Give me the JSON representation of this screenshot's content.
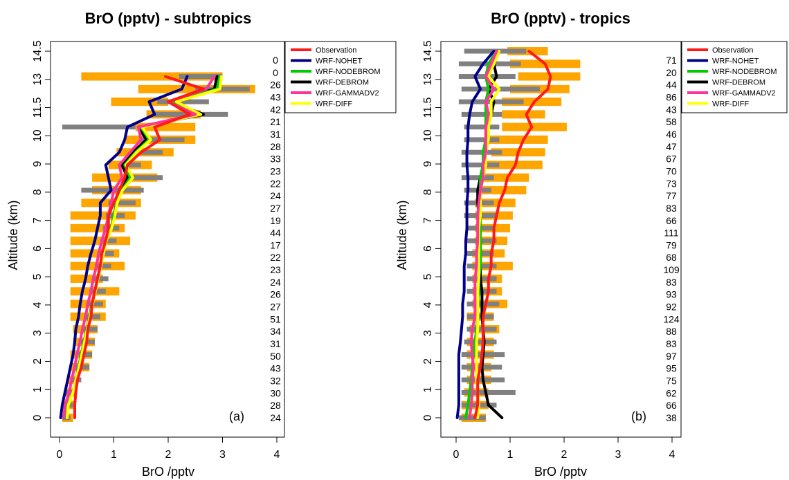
{
  "chart_data": [
    {
      "type": "line",
      "title": "BrO (pptv) -  subtropics",
      "panel_label": "(a)",
      "xlabel": "BrO /pptv",
      "ylabel": "Altitude (km)",
      "xlim": [
        0,
        4
      ],
      "ylim": [
        0,
        14.5
      ],
      "xticks": [
        "0",
        "1",
        "2",
        "3",
        "4"
      ],
      "yticks": [
        "0",
        "1",
        "2",
        "3",
        "4",
        "5",
        "6",
        "7",
        "8",
        "9",
        "10",
        "11.5",
        "13",
        "14.5"
      ],
      "grid": false,
      "legend": "top-right outside",
      "altitudes": [
        0,
        0.5,
        1,
        1.5,
        2,
        2.5,
        3,
        3.5,
        4,
        4.5,
        5,
        5.5,
        6,
        6.5,
        7,
        7.5,
        8,
        8.5,
        9,
        9.5,
        10,
        10.5,
        11,
        11.5,
        12,
        12.5,
        13,
        13.5
      ],
      "counts": [
        "24",
        "28",
        "30",
        "32",
        "43",
        "50",
        "31",
        "34",
        "51",
        "27",
        "26",
        "24",
        "23",
        "22",
        "17",
        "44",
        "19",
        "27",
        "24",
        "22",
        "23",
        "33",
        "28",
        "31",
        "21",
        "42",
        "43",
        "26",
        "0",
        "0"
      ],
      "obs_ranges": [
        [
          0.05,
          0.25
        ],
        [
          0.05,
          0.3
        ],
        [
          0.1,
          0.3
        ],
        [
          0.15,
          0.35
        ],
        [
          0.2,
          0.55
        ],
        [
          0.2,
          0.6
        ],
        [
          0.25,
          0.65
        ],
        [
          0.25,
          0.7
        ],
        [
          0.2,
          0.85
        ],
        [
          0.2,
          0.85
        ],
        [
          0.2,
          1.1
        ],
        [
          0.2,
          0.8
        ],
        [
          0.2,
          1.2
        ],
        [
          0.2,
          1.1
        ],
        [
          0.2,
          1.3
        ],
        [
          0.2,
          1.2
        ],
        [
          0.2,
          1.4
        ],
        [
          0.4,
          1.5
        ],
        [
          0.6,
          1.5
        ],
        [
          0.6,
          1.8
        ],
        [
          0.9,
          1.7
        ],
        [
          1.05,
          2.1
        ],
        [
          1.2,
          2.5
        ],
        [
          1.4,
          2.5
        ],
        [
          1.6,
          2.6
        ],
        [
          0.95,
          2.0
        ],
        [
          1.45,
          3.6
        ],
        [
          0.4,
          3.0
        ]
      ],
      "model_ranges": [
        [
          0.05,
          0.2
        ],
        [
          0.05,
          0.25
        ],
        [
          0.1,
          0.3
        ],
        [
          0.2,
          0.4
        ],
        [
          0.3,
          0.55
        ],
        [
          0.35,
          0.6
        ],
        [
          0.35,
          0.65
        ],
        [
          0.4,
          0.7
        ],
        [
          0.45,
          0.75
        ],
        [
          0.5,
          0.8
        ],
        [
          0.55,
          0.85
        ],
        [
          0.6,
          0.9
        ],
        [
          0.65,
          0.95
        ],
        [
          0.7,
          1.0
        ],
        [
          0.75,
          1.05
        ],
        [
          0.8,
          1.1
        ],
        [
          0.85,
          1.2
        ],
        [
          0.9,
          1.4
        ],
        [
          0.4,
          1.55
        ],
        [
          1.2,
          1.9
        ],
        [
          1.1,
          1.5
        ],
        [
          1.3,
          1.9
        ],
        [
          1.5,
          2.3
        ],
        [
          0.05,
          1.4
        ],
        [
          1.75,
          3.1
        ],
        [
          1.8,
          2.75
        ],
        [
          2.5,
          3.5
        ],
        [
          2.2,
          3.0
        ]
      ],
      "series": [
        {
          "name": "Observation",
          "color": "#ff1a1a",
          "values": [
            0.28,
            0.28,
            0.3,
            0.33,
            0.4,
            0.45,
            0.5,
            0.52,
            0.58,
            0.6,
            0.65,
            0.7,
            0.75,
            0.78,
            0.85,
            0.9,
            0.9,
            1.0,
            1.1,
            1.2,
            1.25,
            1.5,
            1.85,
            1.75,
            2.4,
            2.0,
            2.65,
            1.95
          ]
        },
        {
          "name": "WRF-NOHET",
          "color": "#00008b",
          "values": [
            0.02,
            0.05,
            0.1,
            0.15,
            0.2,
            0.25,
            0.28,
            0.3,
            0.35,
            0.38,
            0.42,
            0.48,
            0.52,
            0.58,
            0.65,
            0.7,
            0.75,
            0.75,
            0.95,
            0.9,
            0.85,
            1.1,
            1.2,
            1.25,
            1.75,
            1.65,
            2.25,
            2.35
          ]
        },
        {
          "name": "WRF-NODEBROM",
          "color": "#00cc00",
          "values": [
            0.12,
            0.15,
            0.25,
            0.3,
            0.35,
            0.4,
            0.45,
            0.5,
            0.55,
            0.6,
            0.65,
            0.7,
            0.75,
            0.8,
            0.85,
            0.95,
            1.0,
            1.05,
            1.15,
            1.3,
            1.2,
            1.4,
            1.65,
            1.5,
            2.6,
            2.1,
            2.9,
            2.95
          ]
        },
        {
          "name": "WRF-DEBROM",
          "color": "#000000",
          "values": [
            0.12,
            0.15,
            0.25,
            0.3,
            0.35,
            0.4,
            0.45,
            0.5,
            0.55,
            0.6,
            0.65,
            0.7,
            0.75,
            0.8,
            0.85,
            0.95,
            1.0,
            1.05,
            1.1,
            1.25,
            1.15,
            1.35,
            1.6,
            1.45,
            2.65,
            2.05,
            2.85,
            2.9
          ]
        },
        {
          "name": "WRF-GAMMADV2",
          "color": "#ff3399",
          "values": [
            0.08,
            0.1,
            0.18,
            0.22,
            0.28,
            0.32,
            0.38,
            0.42,
            0.48,
            0.52,
            0.58,
            0.62,
            0.68,
            0.72,
            0.78,
            0.85,
            0.9,
            0.95,
            1.0,
            1.15,
            1.1,
            1.3,
            1.5,
            1.45,
            2.5,
            2.0,
            2.7,
            2.85
          ]
        },
        {
          "name": "WRF-DIFF",
          "color": "#ffff00",
          "values": [
            0.14,
            0.16,
            0.25,
            0.3,
            0.36,
            0.41,
            0.46,
            0.51,
            0.56,
            0.61,
            0.66,
            0.71,
            0.76,
            0.81,
            0.86,
            0.96,
            1.02,
            1.06,
            1.16,
            1.35,
            1.22,
            1.42,
            1.68,
            1.52,
            2.6,
            2.15,
            2.95,
            2.98
          ]
        }
      ]
    },
    {
      "type": "line",
      "title": "BrO (pptv) - tropics",
      "panel_label": "(b)",
      "xlabel": "BrO /pptv",
      "ylabel": "Altitude (km)",
      "xlim": [
        0,
        4
      ],
      "ylim": [
        0,
        14.5
      ],
      "xticks": [
        "0",
        "1",
        "2",
        "3",
        "4"
      ],
      "yticks": [
        "0",
        "1",
        "2",
        "3",
        "4",
        "5",
        "6",
        "7",
        "8",
        "9",
        "10",
        "11.5",
        "13",
        "14.5"
      ],
      "grid": false,
      "legend": "top-right outside",
      "altitudes": [
        0,
        0.5,
        1,
        1.5,
        2,
        2.5,
        3,
        3.5,
        4,
        4.5,
        5,
        5.5,
        6,
        6.5,
        7,
        7.5,
        8,
        8.5,
        9,
        9.5,
        10,
        10.5,
        11,
        11.5,
        12,
        12.5,
        13,
        13.5,
        14,
        14.5
      ],
      "counts": [
        "38",
        "66",
        "62",
        "75",
        "95",
        "97",
        "83",
        "88",
        "124",
        "92",
        "93",
        "83",
        "109",
        "68",
        "79",
        "111",
        "66",
        "83",
        "77",
        "73",
        "70",
        "67",
        "47",
        "46",
        "58",
        "43",
        "86",
        "44",
        "20",
        "71"
      ],
      "obs_ranges": [
        [
          0.1,
          0.55
        ],
        [
          0.1,
          0.6
        ],
        [
          0.15,
          0.6
        ],
        [
          0.2,
          0.65
        ],
        [
          0.2,
          0.65
        ],
        [
          0.2,
          0.7
        ],
        [
          0.2,
          0.7
        ],
        [
          0.25,
          0.8
        ],
        [
          0.2,
          0.7
        ],
        [
          0.3,
          0.95
        ],
        [
          0.3,
          0.85
        ],
        [
          0.3,
          0.85
        ],
        [
          0.3,
          1.05
        ],
        [
          0.3,
          0.9
        ],
        [
          0.35,
          0.95
        ],
        [
          0.35,
          1.0
        ],
        [
          0.35,
          1.05
        ],
        [
          0.35,
          1.1
        ],
        [
          0.4,
          1.3
        ],
        [
          0.5,
          1.35
        ],
        [
          0.55,
          1.6
        ],
        [
          0.65,
          1.65
        ],
        [
          0.6,
          1.7
        ],
        [
          0.85,
          2.05
        ],
        [
          0.85,
          1.65
        ],
        [
          0.85,
          1.95
        ],
        [
          1.0,
          2.1
        ],
        [
          1.15,
          2.3
        ],
        [
          1.0,
          2.3
        ],
        [
          0.95,
          1.7
        ]
      ],
      "model_ranges": [
        [
          0.05,
          0.55
        ],
        [
          0.1,
          0.75
        ],
        [
          0.1,
          1.1
        ],
        [
          0.1,
          0.9
        ],
        [
          0.1,
          0.85
        ],
        [
          0.1,
          0.9
        ],
        [
          0.15,
          0.75
        ],
        [
          0.2,
          0.75
        ],
        [
          0.2,
          0.7
        ],
        [
          0.2,
          0.8
        ],
        [
          0.2,
          0.75
        ],
        [
          0.2,
          0.75
        ],
        [
          0.2,
          0.75
        ],
        [
          0.2,
          0.7
        ],
        [
          0.2,
          0.75
        ],
        [
          0.2,
          0.7
        ],
        [
          0.15,
          0.75
        ],
        [
          0.15,
          0.7
        ],
        [
          0.15,
          0.65
        ],
        [
          0.1,
          0.7
        ],
        [
          0.1,
          0.8
        ],
        [
          0.1,
          0.85
        ],
        [
          0.15,
          0.8
        ],
        [
          0.15,
          0.8
        ],
        [
          0.1,
          0.85
        ],
        [
          0.05,
          1.25
        ],
        [
          0.1,
          1.55
        ],
        [
          0.05,
          1.1
        ],
        [
          0.05,
          1.2
        ],
        [
          0.15,
          1.3
        ]
      ],
      "series": [
        {
          "name": "Observation",
          "color": "#ff1a1a",
          "values": [
            0.35,
            0.4,
            0.4,
            0.4,
            0.45,
            0.48,
            0.5,
            0.5,
            0.5,
            0.55,
            0.6,
            0.6,
            0.65,
            0.65,
            0.7,
            0.7,
            0.75,
            0.8,
            0.9,
            0.95,
            1.1,
            1.15,
            1.25,
            1.4,
            1.3,
            1.45,
            1.7,
            1.75,
            1.65,
            1.35
          ]
        },
        {
          "name": "WRF-NOHET",
          "color": "#00008b",
          "values": [
            0.02,
            0.05,
            0.05,
            0.05,
            0.05,
            0.05,
            0.08,
            0.1,
            0.12,
            0.12,
            0.15,
            0.15,
            0.15,
            0.18,
            0.18,
            0.2,
            0.2,
            0.2,
            0.22,
            0.22,
            0.2,
            0.2,
            0.22,
            0.22,
            0.25,
            0.3,
            0.45,
            0.35,
            0.5,
            0.7
          ]
        },
        {
          "name": "WRF-NODEBROM",
          "color": "#00cc00",
          "values": [
            0.18,
            0.22,
            0.25,
            0.28,
            0.3,
            0.32,
            0.35,
            0.38,
            0.4,
            0.4,
            0.42,
            0.42,
            0.45,
            0.45,
            0.45,
            0.45,
            0.45,
            0.45,
            0.45,
            0.45,
            0.5,
            0.5,
            0.55,
            0.55,
            0.55,
            0.55,
            0.6,
            0.55,
            0.6,
            0.75
          ]
        },
        {
          "name": "WRF-DEBROM",
          "color": "#000000",
          "values": [
            0.85,
            0.6,
            0.55,
            0.5,
            0.48,
            0.5,
            0.52,
            0.5,
            0.48,
            0.48,
            0.48,
            0.45,
            0.45,
            0.45,
            0.45,
            0.42,
            0.42,
            0.4,
            0.4,
            0.45,
            0.5,
            0.55,
            0.6,
            0.55,
            0.65,
            0.7,
            0.6,
            0.75,
            0.7,
            0.8
          ]
        },
        {
          "name": "WRF-GAMMADV2",
          "color": "#ff3399",
          "values": [
            0.25,
            0.28,
            0.3,
            0.3,
            0.32,
            0.3,
            0.28,
            0.3,
            0.35,
            0.35,
            0.35,
            0.35,
            0.38,
            0.38,
            0.4,
            0.4,
            0.4,
            0.42,
            0.45,
            0.5,
            0.5,
            0.55,
            0.55,
            0.55,
            0.6,
            0.55,
            0.7,
            0.55,
            0.65,
            0.75
          ]
        },
        {
          "name": "WRF-DIFF",
          "color": "#ffff00",
          "values": [
            0.4,
            0.42,
            0.4,
            0.38,
            0.38,
            0.38,
            0.38,
            0.4,
            0.4,
            0.4,
            0.4,
            0.42,
            0.42,
            0.42,
            0.42,
            0.42,
            0.45,
            0.45,
            0.45,
            0.5,
            0.55,
            0.55,
            0.6,
            0.6,
            0.65,
            0.65,
            0.8,
            0.6,
            0.7,
            0.8
          ]
        }
      ]
    }
  ],
  "colors": {
    "obs_bar": "#ffa500",
    "model_bar": "#808080",
    "frame": "#000000"
  }
}
